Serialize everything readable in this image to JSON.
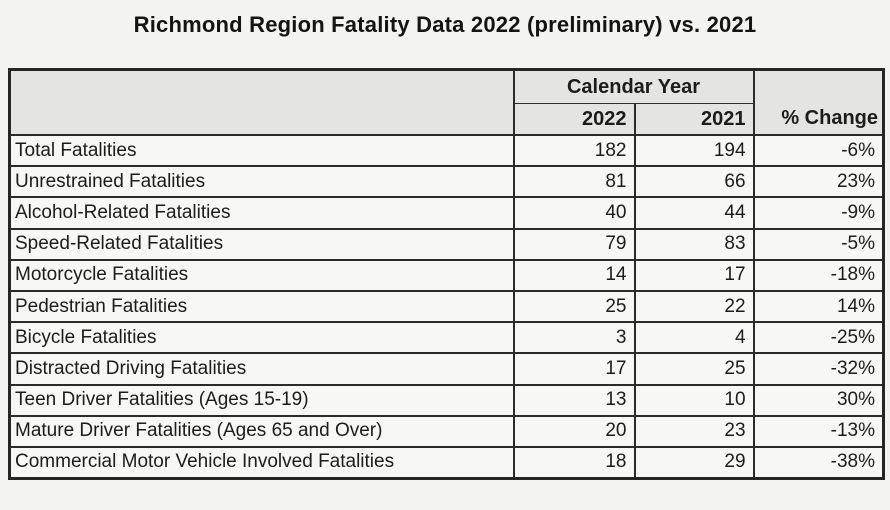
{
  "chart_data": {
    "type": "table",
    "title": "Richmond Region Fatality Data 2022 (preliminary) vs. 2021",
    "column_group": "Calendar Year",
    "columns": [
      "2022",
      "2021",
      "% Change"
    ],
    "categories": [
      "Total Fatalities",
      "Unrestrained Fatalities",
      "Alcohol-Related Fatalities",
      "Speed-Related Fatalities",
      "Motorcycle Fatalities",
      "Pedestrian Fatalities",
      "Bicycle Fatalities",
      "Distracted Driving Fatalities",
      "Teen Driver Fatalities (Ages 15-19)",
      "Mature Driver Fatalities (Ages 65 and Over)",
      "Commercial Motor Vehicle Involved Fatalities"
    ],
    "series": [
      {
        "name": "2022",
        "values": [
          182,
          81,
          40,
          79,
          14,
          25,
          3,
          17,
          13,
          20,
          18
        ]
      },
      {
        "name": "2021",
        "values": [
          194,
          66,
          44,
          83,
          17,
          22,
          4,
          25,
          10,
          23,
          29
        ]
      },
      {
        "name": "% Change",
        "values": [
          "-6%",
          "23%",
          "-9%",
          "-5%",
          "-18%",
          "14%",
          "-25%",
          "-32%",
          "30%",
          "-13%",
          "-38%"
        ]
      }
    ],
    "layout": {
      "grid": "full-borders",
      "header_background": "#e4e4e2",
      "body_background": "#f7f7f5",
      "border_color": "#2b2b2b"
    }
  }
}
